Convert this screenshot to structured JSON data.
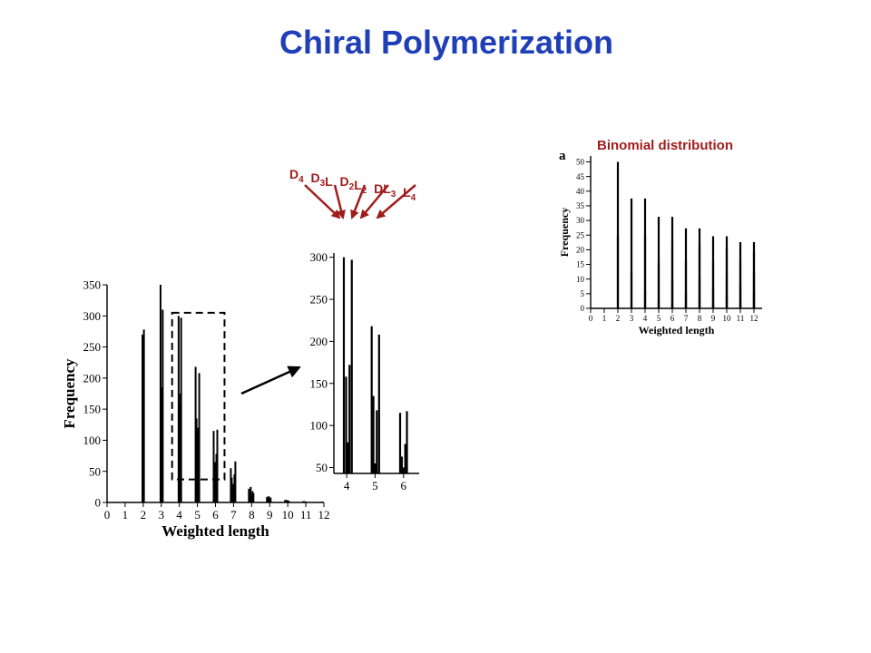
{
  "slide": {
    "title": "Chiral Polymerization",
    "binomial_label": "Binomial distribution",
    "isomers": [
      {
        "base": "D",
        "sub1": "4",
        "mid": "",
        "sub2": ""
      },
      {
        "base": "D",
        "sub1": "3",
        "mid": "L",
        "sub2": ""
      },
      {
        "base": "D",
        "sub1": "2",
        "mid": "L",
        "sub2": "2"
      },
      {
        "base": "DL",
        "sub1": "3",
        "mid": "",
        "sub2": ""
      },
      {
        "base": "L",
        "sub1": "4",
        "mid": "",
        "sub2": ""
      }
    ],
    "colors": {
      "title": "#1f3fb8",
      "annotation": "#a01c1c",
      "bars": "#000000"
    }
  },
  "chart_data": [
    {
      "type": "bar",
      "panel": "main",
      "xlabel": "Weighted length",
      "ylabel": "Frequency",
      "xlim": [
        0,
        12
      ],
      "ylim": [
        0,
        350
      ],
      "xticks": [
        0,
        1,
        2,
        3,
        4,
        5,
        6,
        7,
        8,
        9,
        10,
        11,
        12
      ],
      "yticks": [
        0,
        50,
        100,
        150,
        200,
        250,
        300,
        350
      ],
      "bars": [
        {
          "x": 1.96,
          "y": 270
        },
        {
          "x": 2.0,
          "y": 195
        },
        {
          "x": 2.04,
          "y": 278
        },
        {
          "x": 2.96,
          "y": 350
        },
        {
          "x": 3.0,
          "y": 180
        },
        {
          "x": 3.04,
          "y": 185
        },
        {
          "x": 3.08,
          "y": 310
        },
        {
          "x": 3.96,
          "y": 300
        },
        {
          "x": 4.0,
          "y": 160
        },
        {
          "x": 4.03,
          "y": 82
        },
        {
          "x": 4.06,
          "y": 175
        },
        {
          "x": 4.1,
          "y": 297
        },
        {
          "x": 4.9,
          "y": 218
        },
        {
          "x": 4.95,
          "y": 135
        },
        {
          "x": 5.0,
          "y": 55
        },
        {
          "x": 5.04,
          "y": 120
        },
        {
          "x": 5.1,
          "y": 208
        },
        {
          "x": 5.9,
          "y": 115
        },
        {
          "x": 5.95,
          "y": 65
        },
        {
          "x": 6.0,
          "y": 55
        },
        {
          "x": 6.05,
          "y": 78
        },
        {
          "x": 6.1,
          "y": 117
        },
        {
          "x": 6.85,
          "y": 55
        },
        {
          "x": 6.9,
          "y": 40
        },
        {
          "x": 6.95,
          "y": 25
        },
        {
          "x": 7.0,
          "y": 30
        },
        {
          "x": 7.05,
          "y": 45
        },
        {
          "x": 7.1,
          "y": 66
        },
        {
          "x": 7.85,
          "y": 22
        },
        {
          "x": 7.9,
          "y": 15
        },
        {
          "x": 7.95,
          "y": 25
        },
        {
          "x": 8.0,
          "y": 10
        },
        {
          "x": 8.05,
          "y": 18
        },
        {
          "x": 8.1,
          "y": 15
        },
        {
          "x": 8.85,
          "y": 9
        },
        {
          "x": 8.9,
          "y": 6
        },
        {
          "x": 8.95,
          "y": 10
        },
        {
          "x": 9.0,
          "y": 5
        },
        {
          "x": 9.05,
          "y": 8
        },
        {
          "x": 9.85,
          "y": 4
        },
        {
          "x": 9.9,
          "y": 3
        },
        {
          "x": 9.95,
          "y": 4
        },
        {
          "x": 10.0,
          "y": 2
        },
        {
          "x": 10.05,
          "y": 3
        },
        {
          "x": 10.85,
          "y": 2
        },
        {
          "x": 10.9,
          "y": 1
        },
        {
          "x": 10.95,
          "y": 2
        },
        {
          "x": 11.0,
          "y": 1
        },
        {
          "x": 11.85,
          "y": 1
        },
        {
          "x": 11.9,
          "y": 1
        }
      ],
      "highlight_box": {
        "x0": 3.6,
        "x1": 6.5,
        "y0": 37,
        "y1": 305
      }
    },
    {
      "type": "bar",
      "panel": "zoom",
      "xlim": [
        3.55,
        6.55
      ],
      "ylim": [
        43,
        305
      ],
      "xticks": [
        4,
        5,
        6
      ],
      "yticks": [
        50,
        100,
        150,
        200,
        250,
        300
      ],
      "bars": [
        {
          "x": 3.9,
          "y": 300
        },
        {
          "x": 3.98,
          "y": 158
        },
        {
          "x": 4.04,
          "y": 80
        },
        {
          "x": 4.1,
          "y": 172
        },
        {
          "x": 4.18,
          "y": 297
        },
        {
          "x": 4.88,
          "y": 218
        },
        {
          "x": 4.94,
          "y": 135
        },
        {
          "x": 5.0,
          "y": 55
        },
        {
          "x": 5.06,
          "y": 118
        },
        {
          "x": 5.14,
          "y": 208
        },
        {
          "x": 5.88,
          "y": 115
        },
        {
          "x": 5.94,
          "y": 63
        },
        {
          "x": 6.0,
          "y": 50
        },
        {
          "x": 6.06,
          "y": 78
        },
        {
          "x": 6.12,
          "y": 117
        }
      ]
    },
    {
      "type": "bar",
      "panel": "binomial",
      "panel_label": "a",
      "xlabel": "Weighted length",
      "ylabel": "Frequency",
      "xlim": [
        0,
        12.6
      ],
      "ylim": [
        0,
        52
      ],
      "xticks": [
        0,
        1,
        2,
        3,
        4,
        5,
        6,
        7,
        8,
        9,
        10,
        11,
        12
      ],
      "yticks": [
        0,
        5,
        10,
        15,
        20,
        25,
        30,
        35,
        40,
        45,
        50
      ],
      "bars": [
        {
          "x": 2.0,
          "y": 50
        },
        {
          "x": 2.0,
          "y": 25
        },
        {
          "x": 3.0,
          "y": 37.5
        },
        {
          "x": 3.0,
          "y": 12.5
        },
        {
          "x": 4.0,
          "y": 37.5
        },
        {
          "x": 4.0,
          "y": 25
        },
        {
          "x": 4.0,
          "y": 6.25
        },
        {
          "x": 5.0,
          "y": 31.25
        },
        {
          "x": 5.0,
          "y": 15.6
        },
        {
          "x": 5.0,
          "y": 3.1
        },
        {
          "x": 6.0,
          "y": 31.25
        },
        {
          "x": 6.0,
          "y": 23.4
        },
        {
          "x": 6.0,
          "y": 9.4
        },
        {
          "x": 6.0,
          "y": 1.6
        },
        {
          "x": 7.0,
          "y": 27.3
        },
        {
          "x": 7.0,
          "y": 16.4
        },
        {
          "x": 7.0,
          "y": 5.5
        },
        {
          "x": 7.0,
          "y": 0.8
        },
        {
          "x": 8.0,
          "y": 27.3
        },
        {
          "x": 8.0,
          "y": 21.9
        },
        {
          "x": 8.0,
          "y": 10.9
        },
        {
          "x": 8.0,
          "y": 3.1
        },
        {
          "x": 9.0,
          "y": 24.6
        },
        {
          "x": 9.0,
          "y": 16.4
        },
        {
          "x": 9.0,
          "y": 7.0
        },
        {
          "x": 9.0,
          "y": 1.8
        },
        {
          "x": 10.0,
          "y": 24.6
        },
        {
          "x": 10.0,
          "y": 20.5
        },
        {
          "x": 10.0,
          "y": 11.7
        },
        {
          "x": 10.0,
          "y": 4.4
        },
        {
          "x": 11.0,
          "y": 22.6
        },
        {
          "x": 11.0,
          "y": 16.1
        },
        {
          "x": 11.0,
          "y": 8.1
        },
        {
          "x": 11.0,
          "y": 2.7
        },
        {
          "x": 12.0,
          "y": 22.6
        },
        {
          "x": 12.0,
          "y": 19.3
        },
        {
          "x": 12.0,
          "y": 12.1
        },
        {
          "x": 12.0,
          "y": 5.4
        }
      ]
    }
  ]
}
